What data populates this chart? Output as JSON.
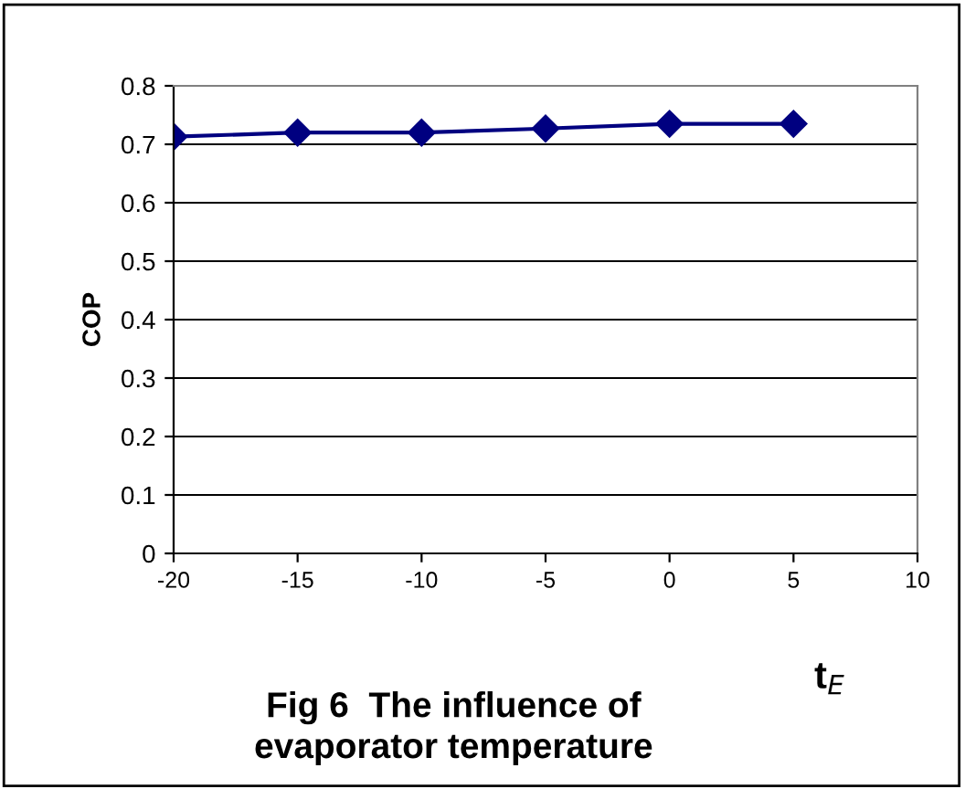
{
  "chart_data": {
    "type": "line",
    "title": "Fig 6  The influence of\nevaporator temperature",
    "xlabel": "t$_{E}$",
    "ylabel": "COP",
    "x": [
      -20,
      -15,
      -10,
      -5,
      0,
      5
    ],
    "series": [
      {
        "color": "#000080",
        "values": [
          0.713,
          0.72,
          0.72,
          0.727,
          0.735,
          0.735
        ]
      }
    ],
    "marker": "diamond",
    "line_style": "solid",
    "xlim": [
      -20,
      10
    ],
    "xticks": [
      -20,
      -15,
      -10,
      -5,
      0,
      5,
      10
    ],
    "ylim": [
      0,
      0.8
    ],
    "yticks": [
      0,
      0.1,
      0.2,
      0.3,
      0.4,
      0.5,
      0.6,
      0.7,
      0.8
    ],
    "grid": "y",
    "legend": false
  }
}
